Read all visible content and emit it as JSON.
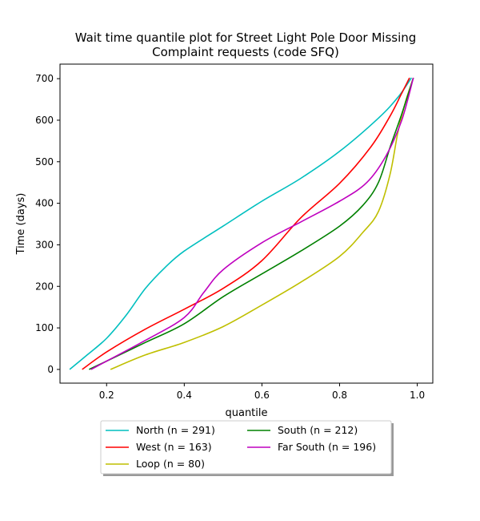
{
  "chart_data": {
    "type": "line",
    "title_lines": [
      "Wait time quantile plot for Street Light Pole Door Missing",
      "Complaint  requests (code SFQ)"
    ],
    "xlabel": "quantile",
    "ylabel": "Time (days)",
    "xlim": [
      0.08,
      1.04
    ],
    "ylim": [
      -33,
      735
    ],
    "xticks": [
      0.2,
      0.4,
      0.6,
      0.8,
      1.0
    ],
    "xtick_labels": [
      "0.2",
      "0.4",
      "0.6",
      "0.8",
      "1.0"
    ],
    "yticks": [
      0,
      100,
      200,
      300,
      400,
      500,
      600,
      700
    ],
    "ytick_labels": [
      "0",
      "100",
      "200",
      "300",
      "400",
      "500",
      "600",
      "700"
    ],
    "grid": false,
    "legend_placement": "bottom-center, below axes, 2 columns",
    "series": [
      {
        "name": "North (n = 291)",
        "color": "#00bfbf",
        "x": [
          0.105,
          0.15,
          0.2,
          0.25,
          0.3,
          0.35,
          0.4,
          0.5,
          0.6,
          0.7,
          0.8,
          0.9,
          0.95,
          0.985
        ],
        "y": [
          0,
          35,
          75,
          130,
          195,
          245,
          285,
          345,
          405,
          460,
          525,
          605,
          655,
          702
        ]
      },
      {
        "name": "West (n = 163)",
        "color": "#ff0000",
        "x": [
          0.137,
          0.2,
          0.3,
          0.4,
          0.5,
          0.6,
          0.7,
          0.8,
          0.88,
          0.93,
          0.96,
          0.98
        ],
        "y": [
          0,
          42,
          97,
          145,
          195,
          262,
          365,
          448,
          535,
          610,
          665,
          702
        ]
      },
      {
        "name": "Loop (n = 80)",
        "color": "#bfbf00",
        "x": [
          0.21,
          0.3,
          0.4,
          0.5,
          0.6,
          0.7,
          0.8,
          0.86,
          0.9,
          0.93,
          0.95,
          0.97,
          0.99
        ],
        "y": [
          0,
          35,
          65,
          103,
          155,
          210,
          272,
          330,
          380,
          470,
          570,
          645,
          702
        ]
      },
      {
        "name": "South (n = 212)",
        "color": "#008000",
        "x": [
          0.155,
          0.2,
          0.3,
          0.4,
          0.5,
          0.6,
          0.7,
          0.8,
          0.86,
          0.9,
          0.93,
          0.96,
          0.99
        ],
        "y": [
          0,
          20,
          65,
          110,
          175,
          230,
          285,
          345,
          395,
          450,
          535,
          615,
          702
        ]
      },
      {
        "name": "Far South (n = 196)",
        "color": "#bf00bf",
        "x": [
          0.16,
          0.2,
          0.3,
          0.4,
          0.45,
          0.5,
          0.6,
          0.7,
          0.8,
          0.87,
          0.92,
          0.96,
          0.99
        ],
        "y": [
          0,
          20,
          70,
          125,
          185,
          240,
          305,
          355,
          405,
          450,
          515,
          600,
          702
        ]
      }
    ]
  }
}
